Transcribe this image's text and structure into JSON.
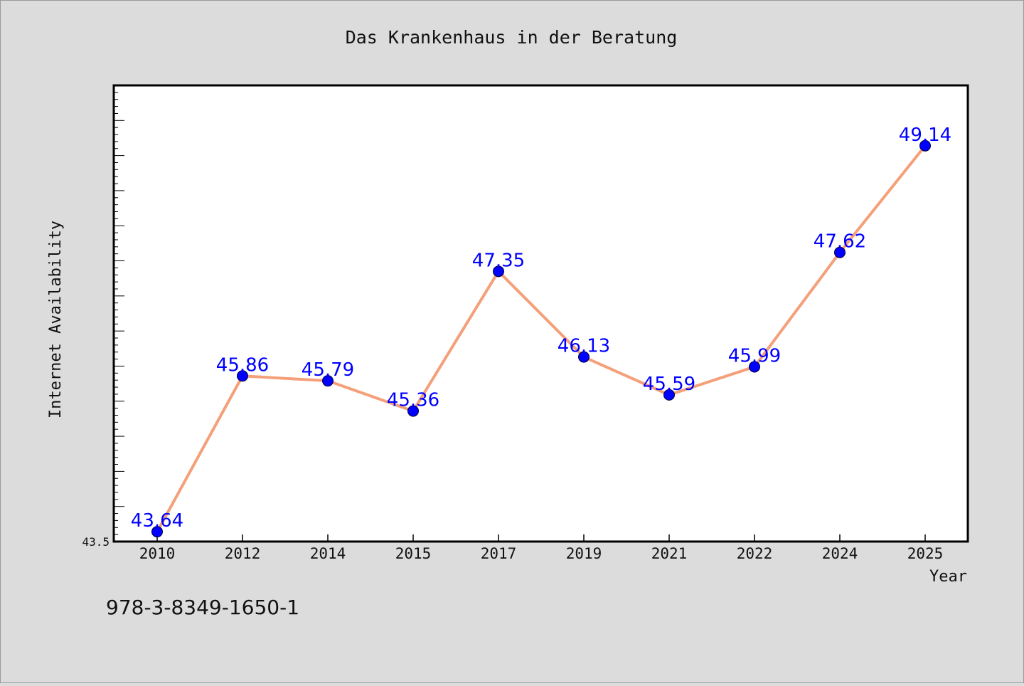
{
  "chart_data": {
    "type": "line",
    "title": "Das Krankenhaus in der Beratung",
    "xlabel": "Year",
    "ylabel": "Internet Availability",
    "categories": [
      "2010",
      "2012",
      "2014",
      "2015",
      "2017",
      "2019",
      "2021",
      "2022",
      "2024",
      "2025"
    ],
    "series": [
      {
        "values": [
          43.64,
          45.86,
          45.79,
          45.36,
          47.35,
          46.13,
          45.59,
          45.99,
          47.62,
          49.14
        ]
      }
    ],
    "data_labels": [
      "43.64",
      "45.86",
      "45.79",
      "45.36",
      "47.35",
      "46.13",
      "45.59",
      "45.99",
      "47.62",
      "49.14"
    ],
    "ylim": [
      43.5,
      50.0
    ],
    "y_tick_labels": [
      "43.5"
    ],
    "grid": false,
    "colors": {
      "line": "#f4a07a",
      "marker": "#0000ff",
      "label": "#0000ff",
      "background": "#dcdcdc",
      "plot_background": "#ffffff"
    }
  },
  "footer": {
    "isbn": "978-3-8349-1650-1"
  }
}
